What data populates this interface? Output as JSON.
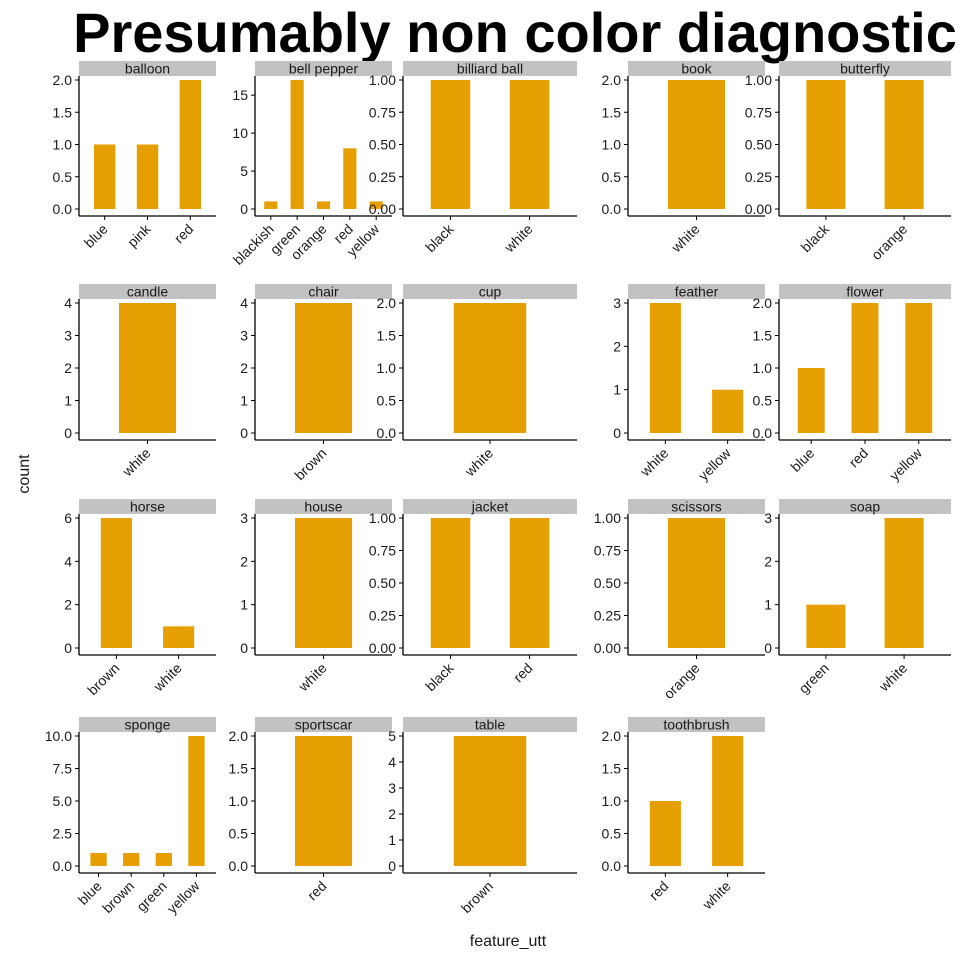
{
  "title": "Presumably non color diagnostic",
  "chart_data": {
    "type": "bar",
    "title": "Presumably non color diagnostic",
    "xlabel": "feature_utt",
    "ylabel": "count",
    "bar_color": "#E69F00",
    "strip_color": "#C2C2C2",
    "grid": false,
    "panels": [
      {
        "name": "balloon",
        "categories": [
          "blue",
          "pink",
          "red"
        ],
        "values": [
          1,
          1,
          2
        ],
        "ylim": [
          0,
          2
        ],
        "ticks": [
          0.0,
          0.5,
          1.0,
          1.5,
          2.0
        ],
        "tick_labels": [
          "0.0",
          "0.5",
          "1.0",
          "1.5",
          "2.0"
        ]
      },
      {
        "name": "bell pepper",
        "categories": [
          "blackish",
          "green",
          "orange",
          "red",
          "yellow"
        ],
        "values": [
          1,
          17,
          1,
          8,
          1
        ],
        "ylim": [
          0,
          17
        ],
        "ticks": [
          0,
          5,
          10,
          15
        ],
        "tick_labels": [
          "0",
          "5",
          "10",
          "15"
        ]
      },
      {
        "name": "billiard ball",
        "categories": [
          "black",
          "white"
        ],
        "values": [
          1,
          1
        ],
        "ylim": [
          0,
          1
        ],
        "ticks": [
          0,
          0.25,
          0.5,
          0.75,
          1
        ],
        "tick_labels": [
          "0.00",
          "0.25",
          "0.50",
          "0.75",
          "1.00"
        ]
      },
      {
        "name": "book",
        "categories": [
          "white"
        ],
        "values": [
          2
        ],
        "ylim": [
          0,
          2
        ],
        "ticks": [
          0.0,
          0.5,
          1.0,
          1.5,
          2.0
        ],
        "tick_labels": [
          "0.0",
          "0.5",
          "1.0",
          "1.5",
          "2.0"
        ]
      },
      {
        "name": "butterfly",
        "categories": [
          "black",
          "orange"
        ],
        "values": [
          1,
          1
        ],
        "ylim": [
          0,
          1
        ],
        "ticks": [
          0,
          0.25,
          0.5,
          0.75,
          1
        ],
        "tick_labels": [
          "0.00",
          "0.25",
          "0.50",
          "0.75",
          "1.00"
        ]
      },
      {
        "name": "candle",
        "categories": [
          "white"
        ],
        "values": [
          4
        ],
        "ylim": [
          0,
          4
        ],
        "ticks": [
          0,
          1,
          2,
          3,
          4
        ],
        "tick_labels": [
          "0",
          "1",
          "2",
          "3",
          "4"
        ]
      },
      {
        "name": "chair",
        "categories": [
          "brown"
        ],
        "values": [
          4
        ],
        "ylim": [
          0,
          4
        ],
        "ticks": [
          0,
          1,
          2,
          3,
          4
        ],
        "tick_labels": [
          "0",
          "1",
          "2",
          "3",
          "4"
        ]
      },
      {
        "name": "cup",
        "categories": [
          "white"
        ],
        "values": [
          2
        ],
        "ylim": [
          0,
          2
        ],
        "ticks": [
          0.0,
          0.5,
          1.0,
          1.5,
          2.0
        ],
        "tick_labels": [
          "0.0",
          "0.5",
          "1.0",
          "1.5",
          "2.0"
        ]
      },
      {
        "name": "feather",
        "categories": [
          "white",
          "yellow"
        ],
        "values": [
          3,
          1
        ],
        "ylim": [
          0,
          3
        ],
        "ticks": [
          0,
          1,
          2,
          3
        ],
        "tick_labels": [
          "0",
          "1",
          "2",
          "3"
        ]
      },
      {
        "name": "flower",
        "categories": [
          "blue",
          "red",
          "yellow"
        ],
        "values": [
          1,
          2,
          2
        ],
        "ylim": [
          0,
          2
        ],
        "ticks": [
          0.0,
          0.5,
          1.0,
          1.5,
          2.0
        ],
        "tick_labels": [
          "0.0",
          "0.5",
          "1.0",
          "1.5",
          "2.0"
        ]
      },
      {
        "name": "horse",
        "categories": [
          "brown",
          "white"
        ],
        "values": [
          6,
          1
        ],
        "ylim": [
          0,
          6
        ],
        "ticks": [
          0,
          2,
          4,
          6
        ],
        "tick_labels": [
          "0",
          "2",
          "4",
          "6"
        ]
      },
      {
        "name": "house",
        "categories": [
          "white"
        ],
        "values": [
          3
        ],
        "ylim": [
          0,
          3
        ],
        "ticks": [
          0,
          1,
          2,
          3
        ],
        "tick_labels": [
          "0",
          "1",
          "2",
          "3"
        ]
      },
      {
        "name": "jacket",
        "categories": [
          "black",
          "red"
        ],
        "values": [
          1,
          1
        ],
        "ylim": [
          0,
          1
        ],
        "ticks": [
          0,
          0.25,
          0.5,
          0.75,
          1
        ],
        "tick_labels": [
          "0.00",
          "0.25",
          "0.50",
          "0.75",
          "1.00"
        ]
      },
      {
        "name": "scissors",
        "categories": [
          "orange"
        ],
        "values": [
          1
        ],
        "ylim": [
          0,
          1
        ],
        "ticks": [
          0,
          0.25,
          0.5,
          0.75,
          1
        ],
        "tick_labels": [
          "0.00",
          "0.25",
          "0.50",
          "0.75",
          "1.00"
        ]
      },
      {
        "name": "soap",
        "categories": [
          "green",
          "white"
        ],
        "values": [
          1,
          3
        ],
        "ylim": [
          0,
          3
        ],
        "ticks": [
          0,
          1,
          2,
          3
        ],
        "tick_labels": [
          "0",
          "1",
          "2",
          "3"
        ]
      },
      {
        "name": "sponge",
        "categories": [
          "blue",
          "brown",
          "green",
          "yellow"
        ],
        "values": [
          1,
          1,
          1,
          10
        ],
        "ylim": [
          0,
          10
        ],
        "ticks": [
          0,
          2.5,
          5,
          7.5,
          10
        ],
        "tick_labels": [
          "0.0",
          "2.5",
          "5.0",
          "7.5",
          "10.0"
        ]
      },
      {
        "name": "sportscar",
        "categories": [
          "red"
        ],
        "values": [
          2
        ],
        "ylim": [
          0,
          2
        ],
        "ticks": [
          0.0,
          0.5,
          1.0,
          1.5,
          2.0
        ],
        "tick_labels": [
          "0.0",
          "0.5",
          "1.0",
          "1.5",
          "2.0"
        ]
      },
      {
        "name": "table",
        "categories": [
          "brown"
        ],
        "values": [
          5
        ],
        "ylim": [
          0,
          5
        ],
        "ticks": [
          0,
          1,
          2,
          3,
          4,
          5
        ],
        "tick_labels": [
          "0",
          "1",
          "2",
          "3",
          "4",
          "5"
        ]
      },
      {
        "name": "toothbrush",
        "categories": [
          "red",
          "white"
        ],
        "values": [
          1,
          2
        ],
        "ylim": [
          0,
          2
        ],
        "ticks": [
          0.0,
          0.5,
          1.0,
          1.5,
          2.0
        ],
        "tick_labels": [
          "0.0",
          "0.5",
          "1.0",
          "1.5",
          "2.0"
        ]
      }
    ]
  }
}
